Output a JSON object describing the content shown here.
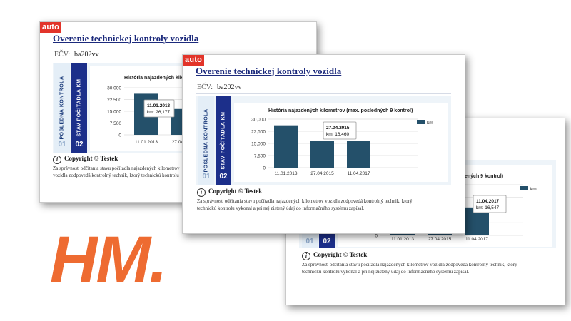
{
  "watermark": "HM.",
  "page": {
    "logo": "auto",
    "title": "Overenie technickej kontroly vozidla",
    "ecv_label": "EČV:",
    "ecv_value": "ba202vv",
    "tab1_label": "POSLEDNÁ KONTROLA",
    "tab2_label": "STAV POČÍTADLA KM",
    "tab1_num": "01",
    "tab2_num": "02",
    "copyright": "Copyright © Testek",
    "note": "Za správnosť odčítania stavu počítadla najazdených kilometrov vozidla zodpovedá kontrolný technik, ktorý technickú kontrolu vykonal a pri nej zistený údaj do informačného systému zapísal."
  },
  "screens": {
    "a": {
      "chart_title": "História najazdených kilom",
      "tip_date": "11.01.2013",
      "tip_value": "km: 26,177"
    },
    "b": {
      "chart_title": "História najazdených kilometrov (max. posledných 9 kontrol)",
      "tip_date": "27.04.2015",
      "tip_value": "km: 16,460"
    },
    "c": {
      "chart_title": "ených 9 kontrol)",
      "tip_date": "11.04.2017",
      "tip_value": "km: 16,547"
    }
  },
  "chart_data": {
    "type": "bar",
    "title": "História najazdených kilometrov (max. posledných 9 kontrol)",
    "categories": [
      "11.01.2013",
      "27.04.2015",
      "11.04.2017"
    ],
    "series": [
      {
        "name": "km",
        "values": [
          26177,
          16460,
          16547
        ]
      }
    ],
    "yticks": [
      "30,000",
      "22,500",
      "15,000",
      "7,500",
      "0"
    ],
    "ylim": [
      0,
      30000
    ],
    "bar_color": "#24506a",
    "legend": "right"
  },
  "colors": {
    "title": "#1c2a7c",
    "tab": "#1c2f8a",
    "watermark": "#ee6b31"
  }
}
